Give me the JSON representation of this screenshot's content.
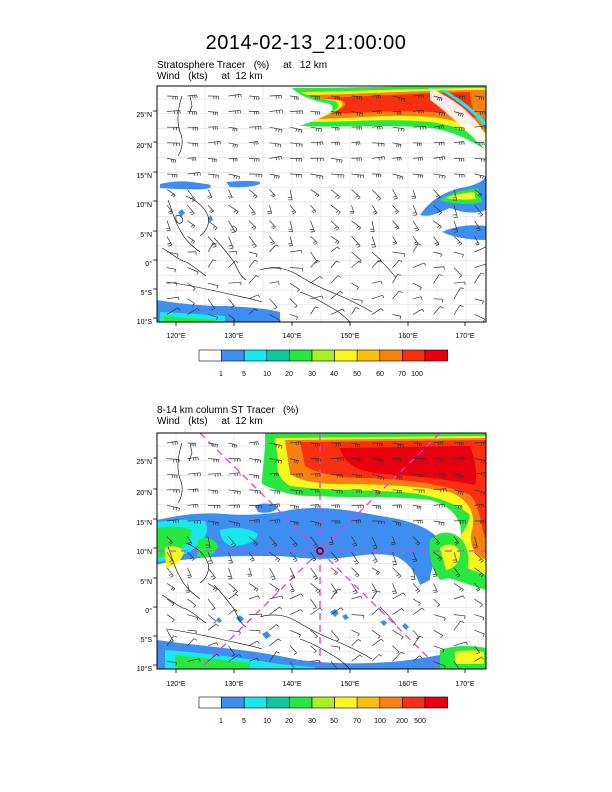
{
  "title": "2014-02-13_21:00:00",
  "panels": [
    {
      "id": "top",
      "subtitle_line1": "Stratosphere Tracer   (%)     at   12 km",
      "subtitle_line2": "Wind   (kts)     at  12 km",
      "lat_labels": [
        "25°N",
        "20°N",
        "15°N",
        "10°N",
        "5°N",
        "0°",
        "5°S",
        "10°S"
      ],
      "lon_labels": [
        "120°E",
        "130°E",
        "140°E",
        "150°E",
        "160°E",
        "170°E"
      ],
      "colorbar_labels": [
        "1",
        "5",
        "10",
        "20",
        "30",
        "40",
        "50",
        "60",
        "70",
        "100"
      ]
    },
    {
      "id": "bottom",
      "subtitle_line1": "8-14 km column ST Tracer   (%)",
      "subtitle_line2": "Wind   (kts)     at  12 km",
      "lat_labels": [
        "25°N",
        "20°N",
        "15°N",
        "10°N",
        "5°N",
        "0°",
        "5°S",
        "10°S"
      ],
      "lon_labels": [
        "120°E",
        "130°E",
        "140°E",
        "150°E",
        "160°E",
        "170°E"
      ],
      "colorbar_labels": [
        "1",
        "5",
        "10",
        "20",
        "30",
        "50",
        "70",
        "100",
        "200",
        "500"
      ]
    }
  ],
  "colors": {
    "scale": [
      "#ffffff",
      "#3d8ef0",
      "#18e8ee",
      "#10c8a0",
      "#28e840",
      "#a8f020",
      "#f8f820",
      "#f8c010",
      "#f88010",
      "#f83010",
      "#e80010"
    ],
    "cross_lines": "#e040e0",
    "grid": "#d8d8d8"
  }
}
